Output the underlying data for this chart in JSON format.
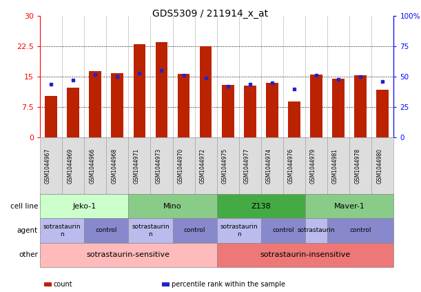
{
  "title": "GDS5309 / 211914_x_at",
  "samples": [
    "GSM1044967",
    "GSM1044969",
    "GSM1044966",
    "GSM1044968",
    "GSM1044971",
    "GSM1044973",
    "GSM1044970",
    "GSM1044972",
    "GSM1044975",
    "GSM1044977",
    "GSM1044974",
    "GSM1044976",
    "GSM1044979",
    "GSM1044981",
    "GSM1044978",
    "GSM1044980"
  ],
  "bar_values": [
    10.3,
    12.3,
    16.3,
    15.8,
    23.1,
    23.6,
    15.7,
    22.5,
    13.0,
    12.8,
    13.5,
    8.8,
    15.6,
    14.5,
    15.3,
    11.8
  ],
  "dot_values": [
    44,
    47,
    52,
    50,
    53,
    55,
    51,
    49,
    42,
    44,
    45,
    40,
    51,
    48,
    50,
    46
  ],
  "left_ylim": [
    0,
    30
  ],
  "right_ylim": [
    0,
    100
  ],
  "left_yticks": [
    0,
    7.5,
    15,
    22.5,
    30
  ],
  "right_yticks": [
    0,
    25,
    50,
    75,
    100
  ],
  "right_yticklabels": [
    "0",
    "25",
    "50",
    "75",
    "100%"
  ],
  "bar_color": "#BB2200",
  "dot_color": "#2222CC",
  "cell_lines": [
    {
      "label": "Jeko-1",
      "start": 0,
      "end": 4,
      "color": "#CCFFCC"
    },
    {
      "label": "Mino",
      "start": 4,
      "end": 8,
      "color": "#88CC88"
    },
    {
      "label": "Z138",
      "start": 8,
      "end": 12,
      "color": "#44AA44"
    },
    {
      "label": "Maver-1",
      "start": 12,
      "end": 16,
      "color": "#88CC88"
    }
  ],
  "agents": [
    {
      "label": "sotrastaurin\nn",
      "start": 0,
      "end": 2,
      "color": "#BBBBEE"
    },
    {
      "label": "control",
      "start": 2,
      "end": 4,
      "color": "#8888CC"
    },
    {
      "label": "sotrastaurin\nn",
      "start": 4,
      "end": 6,
      "color": "#BBBBEE"
    },
    {
      "label": "control",
      "start": 6,
      "end": 8,
      "color": "#8888CC"
    },
    {
      "label": "sotrastaurin\nn",
      "start": 8,
      "end": 10,
      "color": "#BBBBEE"
    },
    {
      "label": "control",
      "start": 10,
      "end": 12,
      "color": "#8888CC"
    },
    {
      "label": "sotrastaurin",
      "start": 12,
      "end": 13,
      "color": "#BBBBEE"
    },
    {
      "label": "control",
      "start": 13,
      "end": 16,
      "color": "#8888CC"
    }
  ],
  "others": [
    {
      "label": "sotrastaurin-sensitive",
      "start": 0,
      "end": 8,
      "color": "#FFBBBB"
    },
    {
      "label": "sotrastaurin-insensitive",
      "start": 8,
      "end": 16,
      "color": "#EE7777"
    }
  ],
  "legend_items": [
    {
      "color": "#BB2200",
      "marker": "s",
      "label": "count"
    },
    {
      "color": "#2222CC",
      "marker": "s",
      "label": "percentile rank within the sample"
    }
  ]
}
